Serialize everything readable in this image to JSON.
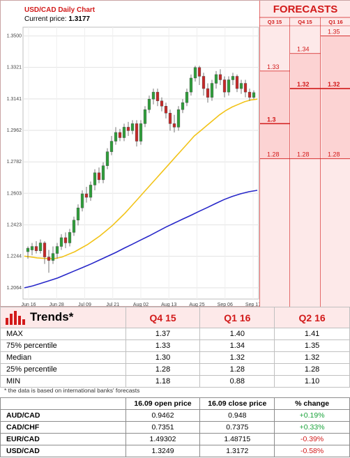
{
  "chart_data": {
    "type": "candlestick",
    "title": "USD/CAD Daily Chart",
    "current_price_label": "Current price:",
    "current_price": "1.3177",
    "y_ticks": [
      "1.3500",
      "1.3321",
      "1.3141",
      "1.2962",
      "1.2782",
      "1.2603",
      "1.2423",
      "1.2244",
      "1.2064"
    ],
    "ylim": [
      1.2,
      1.355
    ],
    "x_ticks": [
      "Jun 16",
      "Jun 28",
      "Jul 09",
      "Jul 21",
      "Aug 02",
      "Aug 13",
      "Aug 25",
      "Sep 06",
      "Sep 17"
    ],
    "candles": [
      [
        1.227,
        1.229,
        1.223,
        1.23
      ],
      [
        1.228,
        1.23,
        1.225,
        1.232
      ],
      [
        1.23,
        1.2275,
        1.226,
        1.233
      ],
      [
        1.2275,
        1.232,
        1.226,
        1.234
      ],
      [
        1.232,
        1.224,
        1.22,
        1.233
      ],
      [
        1.224,
        1.222,
        1.215,
        1.228
      ],
      [
        1.222,
        1.226,
        1.22,
        1.23
      ],
      [
        1.226,
        1.23,
        1.223,
        1.232
      ],
      [
        1.23,
        1.235,
        1.228,
        1.237
      ],
      [
        1.235,
        1.232,
        1.229,
        1.238
      ],
      [
        1.232,
        1.238,
        1.23,
        1.24
      ],
      [
        1.238,
        1.245,
        1.236,
        1.247
      ],
      [
        1.245,
        1.252,
        1.242,
        1.254
      ],
      [
        1.252,
        1.26,
        1.25,
        1.262
      ],
      [
        1.26,
        1.258,
        1.255,
        1.264
      ],
      [
        1.258,
        1.265,
        1.256,
        1.267
      ],
      [
        1.265,
        1.272,
        1.262,
        1.274
      ],
      [
        1.272,
        1.268,
        1.266,
        1.275
      ],
      [
        1.268,
        1.276,
        1.266,
        1.278
      ],
      [
        1.276,
        1.284,
        1.274,
        1.286
      ],
      [
        1.284,
        1.29,
        1.282,
        1.293
      ],
      [
        1.29,
        1.295,
        1.288,
        1.298
      ],
      [
        1.295,
        1.292,
        1.29,
        1.297
      ],
      [
        1.292,
        1.298,
        1.29,
        1.3
      ],
      [
        1.298,
        1.296,
        1.293,
        1.301
      ],
      [
        1.296,
        1.3,
        1.294,
        1.302
      ],
      [
        1.3,
        1.29,
        1.287,
        1.302
      ],
      [
        1.29,
        1.3,
        1.288,
        1.302
      ],
      [
        1.3,
        1.308,
        1.298,
        1.31
      ],
      [
        1.308,
        1.314,
        1.306,
        1.316
      ],
      [
        1.314,
        1.318,
        1.311,
        1.32
      ],
      [
        1.318,
        1.313,
        1.31,
        1.32
      ],
      [
        1.313,
        1.31,
        1.307,
        1.315
      ],
      [
        1.31,
        1.306,
        1.303,
        1.312
      ],
      [
        1.306,
        1.3,
        1.296,
        1.308
      ],
      [
        1.3,
        1.298,
        1.295,
        1.305
      ],
      [
        1.298,
        1.308,
        1.296,
        1.31
      ],
      [
        1.308,
        1.312,
        1.306,
        1.314
      ],
      [
        1.312,
        1.318,
        1.31,
        1.32
      ],
      [
        1.318,
        1.326,
        1.316,
        1.328
      ],
      [
        1.326,
        1.332,
        1.324,
        1.333
      ],
      [
        1.332,
        1.327,
        1.322,
        1.333
      ],
      [
        1.327,
        1.32,
        1.316,
        1.329
      ],
      [
        1.32,
        1.315,
        1.312,
        1.323
      ],
      [
        1.315,
        1.323,
        1.313,
        1.325
      ],
      [
        1.323,
        1.328,
        1.32,
        1.33
      ],
      [
        1.328,
        1.325,
        1.322,
        1.331
      ],
      [
        1.325,
        1.318,
        1.315,
        1.327
      ],
      [
        1.318,
        1.325,
        1.316,
        1.327
      ],
      [
        1.325,
        1.327,
        1.322,
        1.329
      ],
      [
        1.327,
        1.32,
        1.318,
        1.328
      ],
      [
        1.32,
        1.323,
        1.317,
        1.325
      ],
      [
        1.323,
        1.318,
        1.315,
        1.325
      ],
      [
        1.318,
        1.315,
        1.313,
        1.32
      ],
      [
        1.315,
        1.3177,
        1.314,
        1.319
      ]
    ],
    "ma_short": [
      1.2245,
      1.224,
      1.2235,
      1.2232,
      1.223,
      1.2232,
      1.224,
      1.2255,
      1.227,
      1.229,
      1.231,
      1.2335,
      1.236,
      1.239,
      1.242,
      1.2455,
      1.249,
      1.253,
      1.257,
      1.261,
      1.265,
      1.269,
      1.273,
      1.277,
      1.281,
      1.285,
      1.289,
      1.293,
      1.296,
      1.299,
      1.302,
      1.305,
      1.3075,
      1.3095,
      1.311,
      1.3125,
      1.3135,
      1.314
    ],
    "ma_long": [
      1.2064,
      1.2075,
      1.209,
      1.2105,
      1.212,
      1.214,
      1.216,
      1.218,
      1.22,
      1.2222,
      1.2244,
      1.2266,
      1.229,
      1.2313,
      1.2337,
      1.236,
      1.2385,
      1.241,
      1.2433,
      1.2455,
      1.2477,
      1.25,
      1.2522,
      1.2545,
      1.2567,
      1.2585,
      1.26,
      1.2612,
      1.262
    ],
    "forecasts": {
      "title": "FORECASTS",
      "columns": [
        {
          "label": "Q3 15",
          "values": [
            "1.33",
            "1.3",
            "1.28"
          ],
          "ypos": [
            1.33,
            1.3,
            1.28
          ],
          "bold": [
            false,
            true,
            false
          ]
        },
        {
          "label": "Q4 15",
          "values": [
            "1.34",
            "1.32",
            "1.28"
          ],
          "ypos": [
            1.34,
            1.32,
            1.28
          ],
          "bold": [
            false,
            true,
            false
          ]
        },
        {
          "label": "Q1 16",
          "values": [
            "1.35",
            "1.32",
            "1.28"
          ],
          "ypos": [
            1.35,
            1.32,
            1.28
          ],
          "bold": [
            false,
            true,
            false
          ]
        }
      ]
    }
  },
  "trends": {
    "title": "Trends*",
    "columns": [
      "Q4 15",
      "Q1 16",
      "Q2 16"
    ],
    "rows": [
      {
        "label": "MAX",
        "values": [
          "1.37",
          "1.40",
          "1.41"
        ]
      },
      {
        "label": "75% percentile",
        "values": [
          "1.33",
          "1.34",
          "1.35"
        ]
      },
      {
        "label": "Median",
        "values": [
          "1.30",
          "1.32",
          "1.32"
        ]
      },
      {
        "label": "25% percentile",
        "values": [
          "1.28",
          "1.28",
          "1.28"
        ]
      },
      {
        "label": "MIN",
        "values": [
          "1.18",
          "0.88",
          "1.10"
        ]
      }
    ],
    "note": "* the data is based on international banks' forecasts"
  },
  "fx_table": {
    "columns": [
      "16.09 open price",
      "16.09 close price",
      "% change"
    ],
    "rows": [
      {
        "pair": "AUD/CAD",
        "open": "0.9462",
        "close": "0.948",
        "change": "+0.19%",
        "dir": "pos"
      },
      {
        "pair": "CAD/CHF",
        "open": "0.7351",
        "close": "0.7375",
        "change": "+0.33%",
        "dir": "pos"
      },
      {
        "pair": "EUR/CAD",
        "open": "1.49302",
        "close": "1.48715",
        "change": "-0.39%",
        "dir": "neg"
      },
      {
        "pair": "USD/CAD",
        "open": "1.3249",
        "close": "1.3172",
        "change": "-0.58%",
        "dir": "neg"
      }
    ]
  },
  "colors": {
    "red": "#d21a1a",
    "bull": "#2e9e3a",
    "bear": "#c62828",
    "ma_short": "#f2c318",
    "ma_long": "#2727c9"
  }
}
